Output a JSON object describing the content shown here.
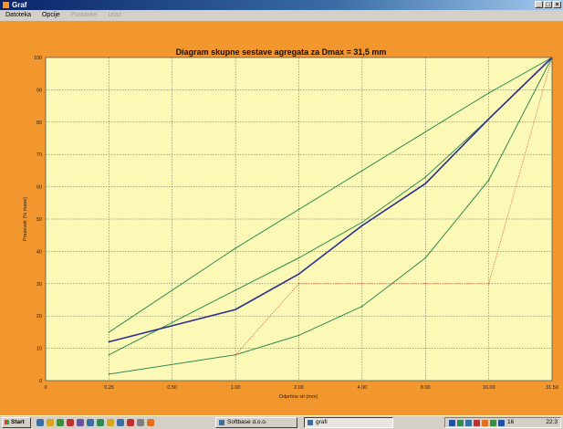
{
  "window": {
    "title": "Graf"
  },
  "menu": {
    "items": [
      {
        "label": "Datoteka",
        "enabled": true
      },
      {
        "label": "Opcije",
        "enabled": true
      },
      {
        "label": "Postavke",
        "enabled": false
      },
      {
        "label": "Izlaz",
        "enabled": false
      }
    ]
  },
  "chart_data": {
    "type": "line",
    "title": "Diagram skupne sestave agregata  za  Dmax = 31,5 mm",
    "xlabel": "Odprtine sit (mm)",
    "ylabel": "Presevek (% mase)",
    "x_categories": [
      "0",
      "0.25",
      "0.50",
      "1.00",
      "2.00",
      "4.00",
      "8.00",
      "16.00",
      "31.50"
    ],
    "y_ticks": [
      0,
      10,
      20,
      30,
      40,
      50,
      60,
      70,
      80,
      90,
      100
    ],
    "ylim": [
      0,
      100
    ],
    "grid": true,
    "series": [
      {
        "style": "upper-limit",
        "color": "#2e8b57",
        "points": [
          [
            "0.25",
            15
          ],
          [
            "1.00",
            41
          ],
          [
            "2.00",
            53
          ],
          [
            "4.00",
            65
          ],
          [
            "8.00",
            77
          ],
          [
            "16.00",
            89
          ],
          [
            "31.50",
            100
          ]
        ]
      },
      {
        "style": "middle-limit",
        "color": "#2e8b57",
        "points": [
          [
            "0.25",
            8
          ],
          [
            "1.00",
            28
          ],
          [
            "2.00",
            38
          ],
          [
            "4.00",
            49
          ],
          [
            "8.00",
            63
          ],
          [
            "16.00",
            81
          ],
          [
            "31.50",
            100
          ]
        ]
      },
      {
        "style": "lower-limit",
        "color": "#2e8b57",
        "points": [
          [
            "0.25",
            2
          ],
          [
            "1.00",
            8
          ],
          [
            "2.00",
            14
          ],
          [
            "4.00",
            23
          ],
          [
            "8.00",
            38
          ],
          [
            "16.00",
            62
          ],
          [
            "31.50",
            100
          ]
        ]
      },
      {
        "style": "mixture",
        "color": "#2b2f8f",
        "points": [
          [
            "0.25",
            12
          ],
          [
            "1.00",
            22
          ],
          [
            "2.00",
            33
          ],
          [
            "4.00",
            48
          ],
          [
            "8.00",
            61
          ],
          [
            "16.00",
            81
          ],
          [
            "31.50",
            100
          ]
        ]
      },
      {
        "style": "dotted-boundary",
        "color": "#e06040",
        "points": [
          [
            "1.00",
            8
          ],
          [
            "2.00",
            30
          ],
          [
            "4.00",
            30
          ],
          [
            "8.00",
            30
          ],
          [
            "16.00",
            30
          ],
          [
            "31.50",
            100
          ]
        ]
      }
    ]
  },
  "taskbar": {
    "start_label": "Start",
    "quicklaunch": [
      "#3a6ea5",
      "#d9a520",
      "#3a8f3a",
      "#c03030",
      "#6a4fa0",
      "#3a6ea5",
      "#2e8b57",
      "#d9a520",
      "#3a6ea5",
      "#c03030",
      "#808080",
      "#e07020"
    ],
    "tasks": [
      {
        "label": "Softbase d.o.o.",
        "active": false
      },
      {
        "label": "grafi",
        "active": true
      }
    ],
    "tray_icons": [
      "#2050a0",
      "#2e8b57",
      "#3a6ea5",
      "#c03030",
      "#e07020",
      "#3a8f3a",
      "#2050a0"
    ],
    "tray_text": "16",
    "clock": "22:3"
  }
}
